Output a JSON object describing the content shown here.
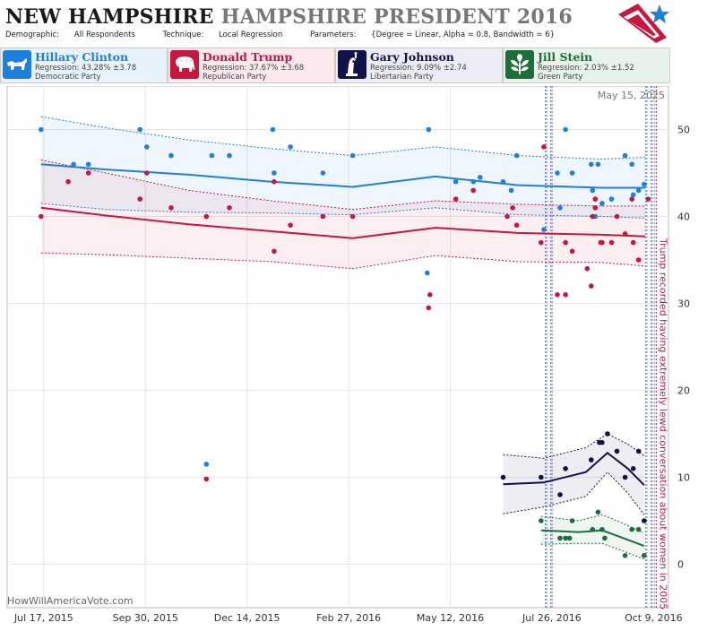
{
  "header": {
    "state": "NEW HAMPSHIRE",
    "race": "HAMPSHIRE PRESIDENT 2016",
    "demographic_label": "Demographic:",
    "demographic_value": "All Respondents",
    "technique_label": "Technique:",
    "technique_value": "Local Regression",
    "parameters_label": "Parameters:",
    "parameters_value": "{Degree = Linear, Alpha = 0.8, Bandwidth = 6}"
  },
  "candidates": [
    {
      "name": "Hillary Clinton",
      "regression": "Regression: 43.28% ±3.78",
      "party": "Democratic Party",
      "color": "#1f7fdd",
      "bg": "#e8f2fb",
      "icon": "donkey-icon"
    },
    {
      "name": "Donald Trump",
      "regression": "Regression: 37.67% ±3.68",
      "party": "Republican Party",
      "color": "#c8173f",
      "bg": "#fbe9ee",
      "icon": "elephant-icon"
    },
    {
      "name": "Gary Johnson",
      "regression": "Regression: 9.09% ±2.74",
      "party": "Libertarian Party",
      "color": "#12124a",
      "bg": "#ececf4",
      "icon": "liberty-statue-icon"
    },
    {
      "name": "Jill Stein",
      "regression": "Regression: 2.03% ±1.52",
      "party": "Green Party",
      "color": "#1e6e3c",
      "bg": "#e7f2eb",
      "icon": "leaf-icon"
    }
  ],
  "chart_data": {
    "type": "scatter",
    "date_label": "May 15, 2025",
    "watermark": "HowWillAmericaVote.com",
    "x_ticks": [
      "Jul 17, 2015",
      "Sep 30, 2015",
      "Dec 14, 2015",
      "Feb 27, 2016",
      "May 12, 2016",
      "Jul 26, 2016",
      "Oct 9, 2016"
    ],
    "x_range": [
      "2015-06-20",
      "2016-10-20"
    ],
    "ylim": [
      -5,
      55
    ],
    "y_ticks": [
      0,
      10,
      20,
      30,
      40,
      50
    ],
    "grid": true,
    "annotation": {
      "text": "Trump recorded having extremely lewd conversation about women in 2005",
      "date": "2016-10-07",
      "color": "#c8173f"
    },
    "event_lines": [
      {
        "date": "2016-07-21",
        "colors": [
          "#1f7fdd",
          "#c8173f"
        ]
      },
      {
        "date": "2016-07-25",
        "colors": [
          "#1f7fdd",
          "#c8173f"
        ]
      },
      {
        "date": "2016-10-03",
        "colors": [
          "#1f7fdd",
          "#c8173f"
        ]
      },
      {
        "date": "2016-10-07",
        "colors": [
          "#1f7fdd",
          "#c8173f"
        ]
      },
      {
        "date": "2016-10-10",
        "colors": [
          "#1f7fdd",
          "#c8173f"
        ]
      }
    ],
    "series": [
      {
        "name": "Hillary Clinton",
        "color": "#1f7fdd",
        "band": "#1f7fdd",
        "points": [
          [
            "2015-07-15",
            50
          ],
          [
            "2015-08-08",
            46
          ],
          [
            "2015-08-19",
            46
          ],
          [
            "2015-09-26",
            50
          ],
          [
            "2015-10-01",
            48
          ],
          [
            "2015-10-19",
            47
          ],
          [
            "2015-11-18",
            47
          ],
          [
            "2015-12-01",
            47
          ],
          [
            "2015-11-14",
            11.5
          ],
          [
            "2016-01-02",
            50
          ],
          [
            "2016-01-03",
            45
          ],
          [
            "2016-01-15",
            48
          ],
          [
            "2016-02-08",
            45
          ],
          [
            "2016-03-01",
            47
          ],
          [
            "2016-04-26",
            50
          ],
          [
            "2016-04-25",
            33.5
          ],
          [
            "2016-05-16",
            44
          ],
          [
            "2016-05-29",
            44
          ],
          [
            "2016-06-03",
            44.5
          ],
          [
            "2016-06-20",
            44
          ],
          [
            "2016-06-26",
            43
          ],
          [
            "2016-06-30",
            47
          ],
          [
            "2016-07-20",
            38.5
          ],
          [
            "2016-07-30",
            45
          ],
          [
            "2016-08-05",
            50
          ],
          [
            "2016-08-10",
            45
          ],
          [
            "2016-08-24",
            46
          ],
          [
            "2016-08-27",
            42
          ],
          [
            "2016-08-25",
            43
          ],
          [
            "2016-08-27",
            40
          ],
          [
            "2016-08-29",
            46
          ],
          [
            "2016-09-01",
            41.5
          ],
          [
            "2016-09-18",
            47
          ],
          [
            "2016-09-23",
            46
          ],
          [
            "2016-09-24",
            42.5
          ],
          [
            "2016-09-28",
            43
          ],
          [
            "2016-10-02",
            43.7
          ],
          [
            "2016-08-01",
            41
          ],
          [
            "2016-09-08",
            42
          ]
        ],
        "trend": [
          [
            "2015-07-15",
            46
          ],
          [
            "2015-09-01",
            45.4
          ],
          [
            "2015-11-01",
            44.8
          ],
          [
            "2016-01-01",
            44
          ],
          [
            "2016-03-01",
            43.4
          ],
          [
            "2016-05-01",
            44.6
          ],
          [
            "2016-07-01",
            43.6
          ],
          [
            "2016-09-01",
            43.3
          ],
          [
            "2016-10-03",
            43.3
          ]
        ],
        "upper": [
          [
            "2015-07-15",
            51.5
          ],
          [
            "2015-09-01",
            50.2
          ],
          [
            "2015-11-01",
            48.8
          ],
          [
            "2016-01-01",
            47.8
          ],
          [
            "2016-03-01",
            47
          ],
          [
            "2016-05-01",
            48
          ],
          [
            "2016-07-01",
            47
          ],
          [
            "2016-09-01",
            46.6
          ],
          [
            "2016-10-03",
            46.8
          ]
        ],
        "lower": [
          [
            "2015-07-15",
            41.5
          ],
          [
            "2015-09-01",
            40.8
          ],
          [
            "2015-11-01",
            40.5
          ],
          [
            "2016-01-01",
            40.4
          ],
          [
            "2016-03-01",
            40.2
          ],
          [
            "2016-05-01",
            41
          ],
          [
            "2016-07-01",
            40.2
          ],
          [
            "2016-09-01",
            40
          ],
          [
            "2016-10-03",
            39.8
          ]
        ]
      },
      {
        "name": "Donald Trump",
        "color": "#c8173f",
        "band": "#c8173f",
        "points": [
          [
            "2015-07-15",
            40
          ],
          [
            "2015-08-04",
            44
          ],
          [
            "2015-08-19",
            45
          ],
          [
            "2015-09-26",
            42
          ],
          [
            "2015-10-01",
            45
          ],
          [
            "2015-10-19",
            41
          ],
          [
            "2015-11-14",
            40
          ],
          [
            "2015-11-14",
            9.8
          ],
          [
            "2015-12-01",
            41
          ],
          [
            "2016-01-03",
            44
          ],
          [
            "2016-01-03",
            36
          ],
          [
            "2016-01-15",
            39
          ],
          [
            "2016-02-08",
            40
          ],
          [
            "2016-03-01",
            40
          ],
          [
            "2016-04-26",
            29.5
          ],
          [
            "2016-04-27",
            31
          ],
          [
            "2016-05-16",
            42
          ],
          [
            "2016-05-29",
            43
          ],
          [
            "2016-06-23",
            40
          ],
          [
            "2016-06-27",
            41
          ],
          [
            "2016-06-30",
            39
          ],
          [
            "2016-07-18",
            37
          ],
          [
            "2016-07-20",
            48
          ],
          [
            "2016-07-30",
            31
          ],
          [
            "2016-08-05",
            37
          ],
          [
            "2016-08-05",
            31
          ],
          [
            "2016-08-10",
            36
          ],
          [
            "2016-08-24",
            32
          ],
          [
            "2016-08-27",
            41
          ],
          [
            "2016-08-27",
            42
          ],
          [
            "2016-08-25",
            40
          ],
          [
            "2016-08-31",
            37
          ],
          [
            "2016-09-01",
            37
          ],
          [
            "2016-09-08",
            37
          ],
          [
            "2016-09-18",
            38
          ],
          [
            "2016-09-23",
            42
          ],
          [
            "2016-09-24",
            37
          ],
          [
            "2016-09-28",
            35
          ],
          [
            "2016-10-05",
            42
          ],
          [
            "2016-08-21",
            34
          ],
          [
            "2016-09-12",
            40
          ]
        ],
        "trend": [
          [
            "2015-07-15",
            41
          ],
          [
            "2015-09-01",
            40.1
          ],
          [
            "2015-11-01",
            39.1
          ],
          [
            "2016-01-01",
            38.3
          ],
          [
            "2016-03-01",
            37.5
          ],
          [
            "2016-05-01",
            38.7
          ],
          [
            "2016-07-01",
            38.1
          ],
          [
            "2016-09-01",
            37.9
          ],
          [
            "2016-10-03",
            37.7
          ]
        ],
        "upper": [
          [
            "2015-07-15",
            46.5
          ],
          [
            "2015-09-01",
            45
          ],
          [
            "2015-11-01",
            43
          ],
          [
            "2016-01-01",
            41.8
          ],
          [
            "2016-03-01",
            40.8
          ],
          [
            "2016-05-01",
            41.8
          ],
          [
            "2016-07-01",
            41.4
          ],
          [
            "2016-09-01",
            41.2
          ],
          [
            "2016-10-03",
            41.2
          ]
        ],
        "lower": [
          [
            "2015-07-15",
            35.8
          ],
          [
            "2015-09-01",
            35.6
          ],
          [
            "2015-11-01",
            35.2
          ],
          [
            "2016-01-01",
            34.8
          ],
          [
            "2016-03-01",
            34
          ],
          [
            "2016-05-01",
            35.5
          ],
          [
            "2016-07-01",
            34.8
          ],
          [
            "2016-09-01",
            34.7
          ],
          [
            "2016-10-03",
            34.3
          ]
        ]
      },
      {
        "name": "Gary Johnson",
        "color": "#12124a",
        "band": "#12124a",
        "points": [
          [
            "2016-06-20",
            10
          ],
          [
            "2016-07-18",
            10
          ],
          [
            "2016-08-01",
            8
          ],
          [
            "2016-08-05",
            11
          ],
          [
            "2016-08-24",
            12
          ],
          [
            "2016-08-30",
            14
          ],
          [
            "2016-09-01",
            14
          ],
          [
            "2016-09-05",
            15
          ],
          [
            "2016-09-12",
            13
          ],
          [
            "2016-09-18",
            10
          ],
          [
            "2016-09-28",
            13
          ],
          [
            "2016-09-24",
            11
          ],
          [
            "2016-10-02",
            5
          ]
        ],
        "trend": [
          [
            "2016-06-20",
            9.2
          ],
          [
            "2016-07-20",
            9.4
          ],
          [
            "2016-08-20",
            10.6
          ],
          [
            "2016-09-05",
            12.8
          ],
          [
            "2016-09-20",
            11
          ],
          [
            "2016-10-02",
            9.1
          ]
        ],
        "upper": [
          [
            "2016-06-20",
            12.6
          ],
          [
            "2016-07-20",
            12.2
          ],
          [
            "2016-08-20",
            13.4
          ],
          [
            "2016-09-05",
            15
          ],
          [
            "2016-09-20",
            13.8
          ],
          [
            "2016-10-02",
            12.5
          ]
        ],
        "lower": [
          [
            "2016-06-20",
            5.8
          ],
          [
            "2016-07-20",
            6.6
          ],
          [
            "2016-08-20",
            7.8
          ],
          [
            "2016-09-05",
            10.6
          ],
          [
            "2016-09-20",
            8.2
          ],
          [
            "2016-10-02",
            5.7
          ]
        ]
      },
      {
        "name": "Jill Stein",
        "color": "#1e6e3c",
        "band": "#1e6e3c",
        "points": [
          [
            "2016-07-18",
            5
          ],
          [
            "2016-08-01",
            3
          ],
          [
            "2016-08-05",
            3
          ],
          [
            "2016-08-08",
            3
          ],
          [
            "2016-08-10",
            5
          ],
          [
            "2016-08-25",
            4
          ],
          [
            "2016-08-29",
            6
          ],
          [
            "2016-09-01",
            4
          ],
          [
            "2016-09-03",
            3
          ],
          [
            "2016-09-18",
            1
          ],
          [
            "2016-09-23",
            4
          ],
          [
            "2016-09-28",
            4
          ],
          [
            "2016-10-02",
            1
          ]
        ],
        "trend": [
          [
            "2016-07-18",
            3.9
          ],
          [
            "2016-08-15",
            3.7
          ],
          [
            "2016-09-01",
            3.9
          ],
          [
            "2016-09-15",
            3.1
          ],
          [
            "2016-10-02",
            2.1
          ]
        ],
        "upper": [
          [
            "2016-07-18",
            5.5
          ],
          [
            "2016-08-15",
            5
          ],
          [
            "2016-09-01",
            5.7
          ],
          [
            "2016-09-15",
            4.8
          ],
          [
            "2016-10-02",
            3.6
          ]
        ],
        "lower": [
          [
            "2016-07-18",
            2.3
          ],
          [
            "2016-08-15",
            2.4
          ],
          [
            "2016-09-01",
            2.4
          ],
          [
            "2016-09-15",
            1.6
          ],
          [
            "2016-10-02",
            0.6
          ]
        ]
      }
    ]
  }
}
